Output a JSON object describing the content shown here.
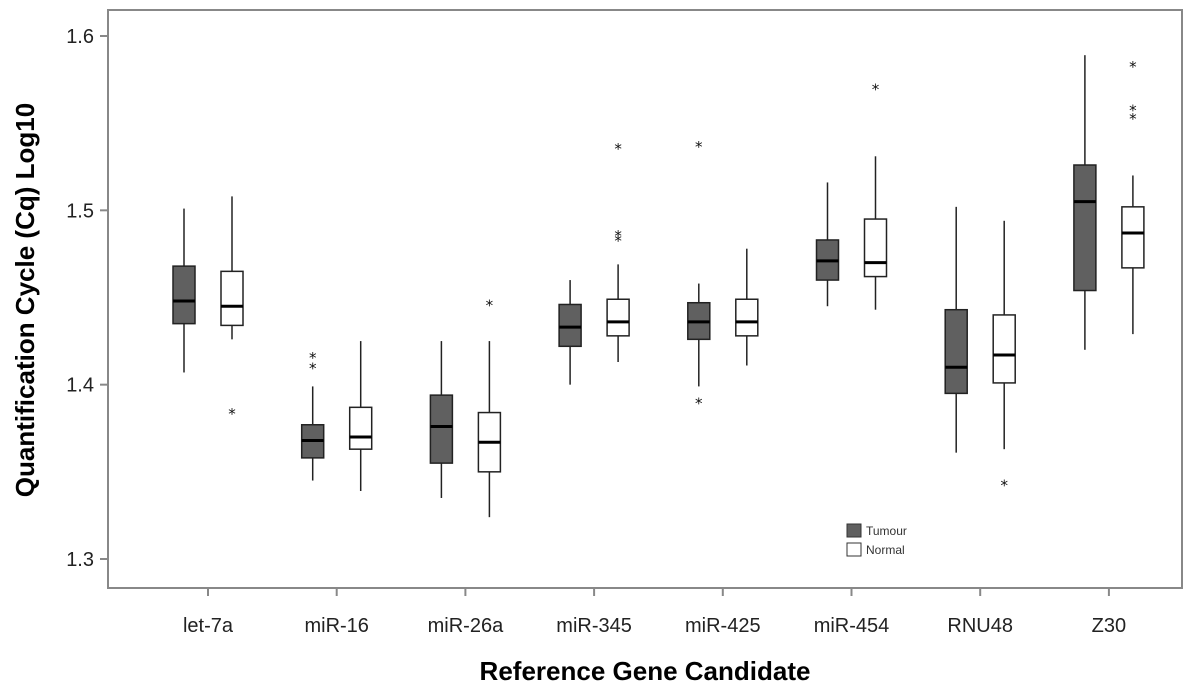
{
  "chart_data": {
    "type": "box",
    "title": "",
    "xlabel": "Reference Gene Candidate",
    "ylabel": "Quantification Cycle (Cq) Log10",
    "ylim": [
      1.28,
      1.62
    ],
    "yticks": [
      "1.3",
      "1.4",
      "1.5",
      "1.6"
    ],
    "ytick_values": [
      1.3,
      1.4,
      1.5,
      1.6
    ],
    "categories": [
      "let-7a",
      "miR-16",
      "miR-26a",
      "miR-345",
      "miR-425",
      "miR-454",
      "RNU48",
      "Z30"
    ],
    "legend_position": "bottom-right",
    "outlier_marker": "*",
    "series": [
      {
        "name": "Tumour",
        "color": "#606060",
        "boxes": [
          {
            "min": 1.407,
            "q1": 1.435,
            "median": 1.448,
            "q3": 1.468,
            "max": 1.501,
            "outliers": []
          },
          {
            "min": 1.345,
            "q1": 1.358,
            "median": 1.368,
            "q3": 1.377,
            "max": 1.399,
            "outliers": [
              1.411,
              1.417
            ]
          },
          {
            "min": 1.335,
            "q1": 1.355,
            "median": 1.376,
            "q3": 1.394,
            "max": 1.425,
            "outliers": []
          },
          {
            "min": 1.4,
            "q1": 1.422,
            "median": 1.433,
            "q3": 1.446,
            "max": 1.46,
            "outliers": []
          },
          {
            "min": 1.399,
            "q1": 1.426,
            "median": 1.436,
            "q3": 1.447,
            "max": 1.458,
            "outliers": [
              1.391,
              1.538
            ]
          },
          {
            "min": 1.445,
            "q1": 1.46,
            "median": 1.471,
            "q3": 1.483,
            "max": 1.516,
            "outliers": []
          },
          {
            "min": 1.361,
            "q1": 1.395,
            "median": 1.41,
            "q3": 1.443,
            "max": 1.502,
            "outliers": []
          },
          {
            "min": 1.42,
            "q1": 1.454,
            "median": 1.505,
            "q3": 1.526,
            "max": 1.589,
            "outliers": []
          }
        ]
      },
      {
        "name": "Normal",
        "color": "#ffffff",
        "boxes": [
          {
            "min": 1.426,
            "q1": 1.434,
            "median": 1.445,
            "q3": 1.465,
            "max": 1.508,
            "outliers": [
              1.385
            ]
          },
          {
            "min": 1.339,
            "q1": 1.363,
            "median": 1.37,
            "q3": 1.387,
            "max": 1.425,
            "outliers": []
          },
          {
            "min": 1.324,
            "q1": 1.35,
            "median": 1.367,
            "q3": 1.384,
            "max": 1.425,
            "outliers": [
              1.447
            ]
          },
          {
            "min": 1.413,
            "q1": 1.428,
            "median": 1.436,
            "q3": 1.449,
            "max": 1.469,
            "outliers": [
              1.484,
              1.487,
              1.537
            ]
          },
          {
            "min": 1.411,
            "q1": 1.428,
            "median": 1.436,
            "q3": 1.449,
            "max": 1.478,
            "outliers": []
          },
          {
            "min": 1.443,
            "q1": 1.462,
            "median": 1.47,
            "q3": 1.495,
            "max": 1.531,
            "outliers": [
              1.571
            ]
          },
          {
            "min": 1.363,
            "q1": 1.401,
            "median": 1.417,
            "q3": 1.44,
            "max": 1.494,
            "outliers": [
              1.344
            ]
          },
          {
            "min": 1.429,
            "q1": 1.467,
            "median": 1.487,
            "q3": 1.502,
            "max": 1.52,
            "outliers": [
              1.554,
              1.559,
              1.584
            ]
          }
        ]
      }
    ]
  }
}
